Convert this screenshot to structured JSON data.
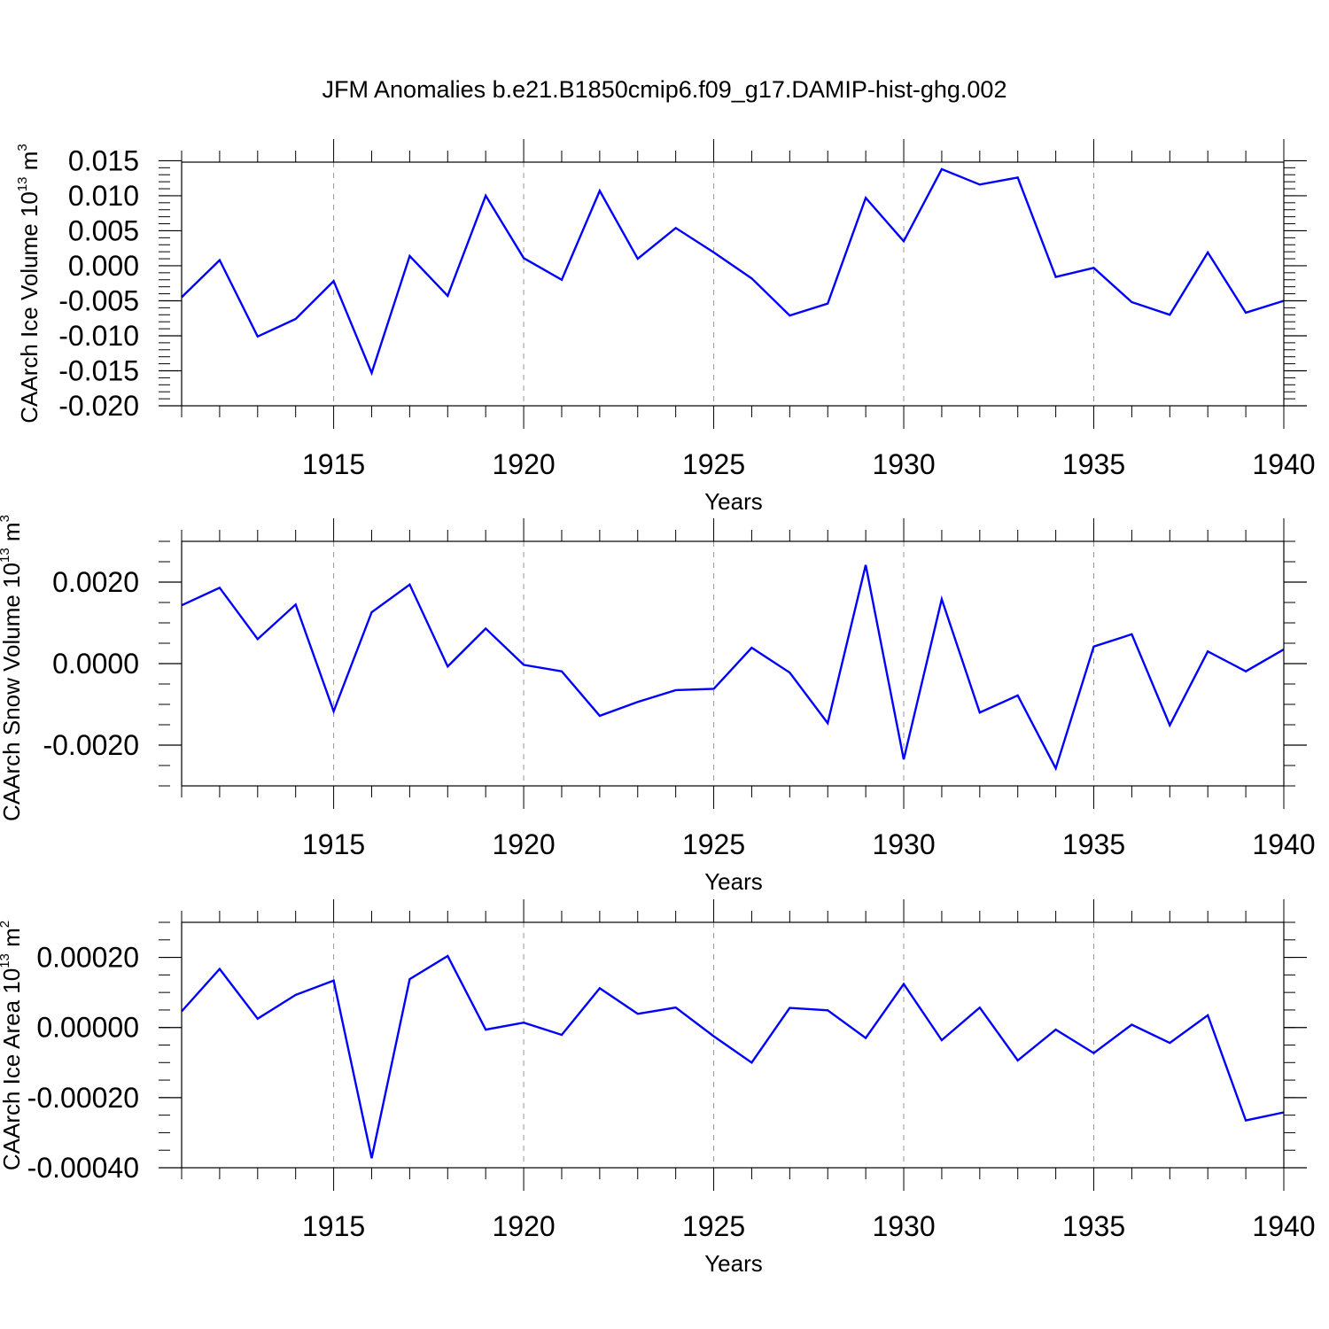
{
  "title": "JFM Anomalies b.e21.B1850cmip6.f09_g17.DAMIP-hist-ghg.002",
  "colors": {
    "line": "#0000ff",
    "axis": "#000000",
    "grid": "#999999"
  },
  "chart_data": [
    {
      "type": "line",
      "series_name": "CAArch Ice Volume",
      "ylabel": "CAArch Ice Volume 10",
      "ylabel_exponent": "13",
      "ylabel_unit": "m",
      "ylabel_unit_exponent": "3",
      "xlabel": "Years",
      "xlim": [
        1911,
        1940
      ],
      "ylim": [
        -0.02,
        0.0148
      ],
      "grid": "vertical dashed at major x ticks",
      "x_ticks": [
        1915,
        1920,
        1925,
        1930,
        1935,
        1940
      ],
      "x_tick_labels": [
        "1915",
        "1920",
        "1925",
        "1930",
        "1935",
        "1940"
      ],
      "y_ticks": [
        0.015,
        0.01,
        0.005,
        0.0,
        -0.005,
        -0.01,
        -0.015,
        -0.02
      ],
      "y_tick_labels": [
        "0.015",
        "0.010",
        "0.005",
        "0.000",
        "-0.005",
        "-0.010",
        "-0.015",
        "-0.020"
      ],
      "y_minor_step": 0.001,
      "x": [
        1911,
        1912,
        1913,
        1914,
        1915,
        1916,
        1917,
        1918,
        1919,
        1920,
        1921,
        1922,
        1923,
        1924,
        1925,
        1926,
        1927,
        1928,
        1929,
        1930,
        1931,
        1932,
        1933,
        1934,
        1935,
        1936,
        1937,
        1938,
        1939,
        1940
      ],
      "values": [
        -0.0045,
        0.0008,
        -0.0101,
        -0.0076,
        -0.0022,
        -0.0153,
        0.0014,
        -0.0043,
        0.01,
        0.0011,
        -0.002,
        0.0107,
        0.001,
        0.0054,
        0.0019,
        -0.0018,
        -0.0071,
        -0.0054,
        0.0097,
        0.0035,
        0.0138,
        0.0116,
        0.0126,
        -0.0016,
        -0.0003,
        -0.0052,
        -0.007,
        0.0019,
        -0.0067,
        -0.005
      ]
    },
    {
      "type": "line",
      "series_name": "CAArch Snow Volume",
      "ylabel": "CAArch Snow Volume 10",
      "ylabel_exponent": "13",
      "ylabel_unit": "m",
      "ylabel_unit_exponent": "3",
      "xlabel": "Years",
      "xlim": [
        1911,
        1940
      ],
      "ylim": [
        -0.003,
        0.003
      ],
      "grid": "vertical dashed at major x ticks",
      "x_ticks": [
        1915,
        1920,
        1925,
        1930,
        1935,
        1940
      ],
      "x_tick_labels": [
        "1915",
        "1920",
        "1925",
        "1930",
        "1935",
        "1940"
      ],
      "y_ticks": [
        0.002,
        0.0,
        -0.002
      ],
      "y_tick_labels": [
        "0.0020",
        "0.0000",
        "-0.0020"
      ],
      "y_minor_step": 0.0005,
      "x": [
        1911,
        1912,
        1913,
        1914,
        1915,
        1916,
        1917,
        1918,
        1919,
        1920,
        1921,
        1922,
        1923,
        1924,
        1925,
        1926,
        1927,
        1928,
        1929,
        1930,
        1931,
        1932,
        1933,
        1934,
        1935,
        1936,
        1937,
        1938,
        1939,
        1940
      ],
      "values": [
        0.00143,
        0.00186,
        0.0006,
        0.00145,
        -0.00117,
        0.00126,
        0.00194,
        -7e-05,
        0.00086,
        -3e-05,
        -0.00019,
        -0.00128,
        -0.00094,
        -0.00065,
        -0.00062,
        0.00039,
        -0.00022,
        -0.00146,
        0.00242,
        -0.00235,
        0.00158,
        -0.0012,
        -0.00078,
        -0.00257,
        0.00042,
        0.00072,
        -0.00151,
        0.0003,
        -0.00019,
        0.00035
      ]
    },
    {
      "type": "line",
      "series_name": "CAArch Ice Area",
      "ylabel": "CAArch Ice Area 10",
      "ylabel_exponent": "13",
      "ylabel_unit": "m",
      "ylabel_unit_exponent": "2",
      "xlabel": "Years",
      "xlim": [
        1911,
        1940
      ],
      "ylim": [
        -0.0004,
        0.0003
      ],
      "grid": "vertical dashed at major x ticks",
      "x_ticks": [
        1915,
        1920,
        1925,
        1930,
        1935,
        1940
      ],
      "x_tick_labels": [
        "1915",
        "1920",
        "1925",
        "1930",
        "1935",
        "1940"
      ],
      "y_ticks": [
        0.0002,
        0.0,
        -0.0002,
        -0.0004
      ],
      "y_tick_labels": [
        "0.00020",
        "0.00000",
        "-0.00020",
        "-0.00040"
      ],
      "y_minor_step": 5e-05,
      "x": [
        1911,
        1912,
        1913,
        1914,
        1915,
        1916,
        1917,
        1918,
        1919,
        1920,
        1921,
        1922,
        1923,
        1924,
        1925,
        1926,
        1927,
        1928,
        1929,
        1930,
        1931,
        1932,
        1933,
        1934,
        1935,
        1936,
        1937,
        1938,
        1939,
        1940
      ],
      "values": [
        4.6e-05,
        0.000167,
        2.5e-05,
        9.3e-05,
        0.000134,
        -0.000373,
        0.000138,
        0.000204,
        -6e-06,
        1.4e-05,
        -2.1e-05,
        0.000112,
        3.9e-05,
        5.7e-05,
        -2.5e-05,
        -0.0001,
        5.6e-05,
        4.9e-05,
        -3e-05,
        0.000124,
        -3.6e-05,
        5.7e-05,
        -9.4e-05,
        -6e-06,
        -7.3e-05,
        8e-06,
        -4.4e-05,
        3.5e-05,
        -0.000265,
        -0.000242
      ]
    }
  ]
}
